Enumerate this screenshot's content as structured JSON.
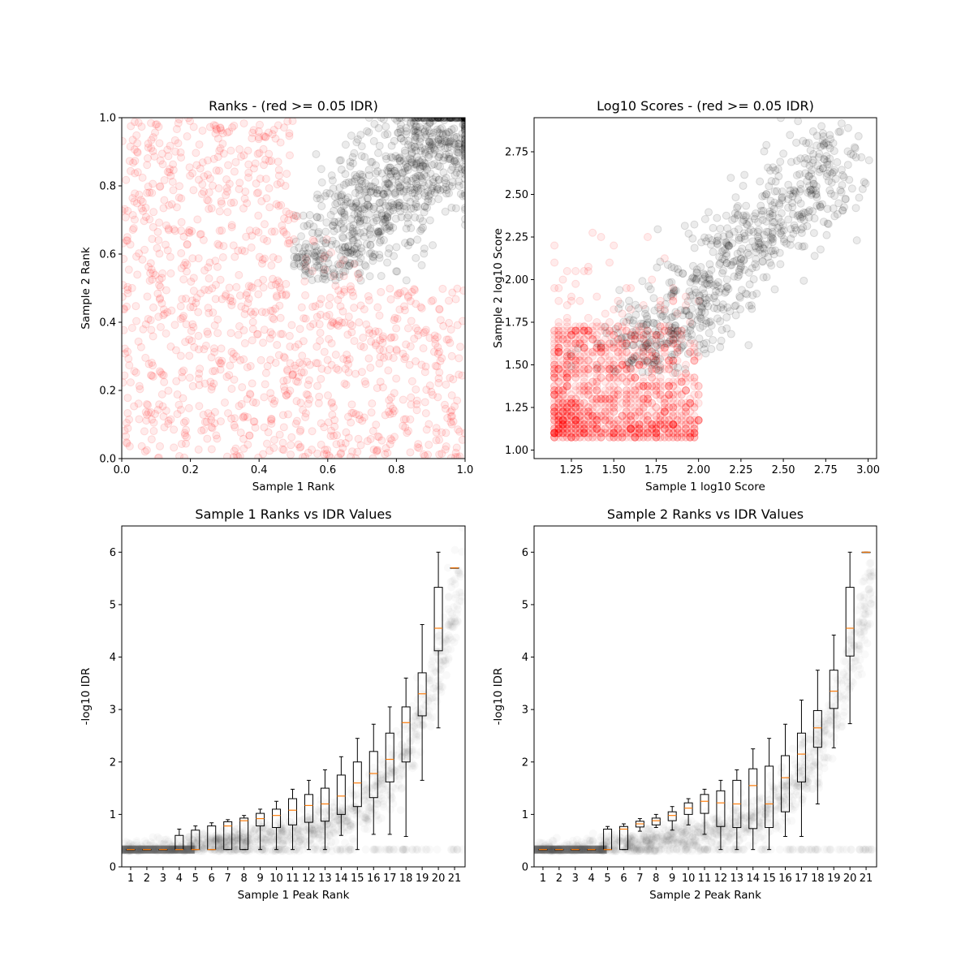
{
  "chart_data": [
    {
      "type": "scatter",
      "title": "Ranks - (red >= 0.05 IDR)",
      "xlabel": "Sample 1 Rank",
      "ylabel": "Sample 2 Rank",
      "xlim": [
        0.0,
        1.0
      ],
      "ylim": [
        0.0,
        1.0
      ],
      "xticks": [
        "0.0",
        "0.2",
        "0.4",
        "0.6",
        "0.8",
        "1.0"
      ],
      "yticks": [
        "0.0",
        "0.2",
        "0.4",
        "0.6",
        "0.8",
        "1.0"
      ],
      "colors": {
        "low_idr": "#ff0000",
        "high_idr": "#000000"
      },
      "series": [
        {
          "color": "#000000",
          "description_points": "about 1000 points clustered from (0.5,0.5) to (1.0,1.0)"
        },
        {
          "color": "#ff0000",
          "description_points": "about 2000 points spread over remaining area"
        }
      ]
    },
    {
      "type": "scatter",
      "title": "Log10 Scores - (red >= 0.05 IDR)",
      "xlabel": "Sample 1 log10 Score",
      "ylabel": "Sample 2 log10 Score",
      "xlim": [
        1.03,
        3.05
      ],
      "ylim": [
        0.95,
        2.95
      ],
      "xticks": [
        "1.25",
        "1.50",
        "1.75",
        "2.00",
        "2.25",
        "2.50",
        "2.75",
        "3.00"
      ],
      "yticks": [
        "1.00",
        "1.25",
        "1.50",
        "1.75",
        "2.00",
        "2.25",
        "2.50",
        "2.75"
      ],
      "colors": {
        "low_idr": "#ff0000",
        "high_idr": "#000000"
      }
    },
    {
      "type": "box",
      "title": "Sample 1 Ranks vs IDR Values",
      "xlabel": "Sample 1 Peak Rank",
      "ylabel": "-log10 IDR",
      "ylim": [
        0,
        6.5
      ],
      "yticks": [
        "0",
        "1",
        "2",
        "3",
        "4",
        "5",
        "6"
      ],
      "categories": [
        "1",
        "2",
        "3",
        "4",
        "5",
        "6",
        "7",
        "8",
        "9",
        "10",
        "11",
        "12",
        "13",
        "14",
        "15",
        "16",
        "17",
        "18",
        "19",
        "20",
        "21"
      ],
      "boxes": [
        {
          "min": 0.33,
          "q1": 0.33,
          "median": 0.33,
          "q3": 0.33,
          "max": 0.33
        },
        {
          "min": 0.33,
          "q1": 0.33,
          "median": 0.33,
          "q3": 0.33,
          "max": 0.33
        },
        {
          "min": 0.33,
          "q1": 0.33,
          "median": 0.33,
          "q3": 0.33,
          "max": 0.33
        },
        {
          "min": 0.33,
          "q1": 0.33,
          "median": 0.33,
          "q3": 0.6,
          "max": 0.72
        },
        {
          "min": 0.33,
          "q1": 0.33,
          "median": 0.33,
          "q3": 0.7,
          "max": 0.78
        },
        {
          "min": 0.33,
          "q1": 0.33,
          "median": 0.33,
          "q3": 0.78,
          "max": 0.84
        },
        {
          "min": 0.33,
          "q1": 0.33,
          "median": 0.78,
          "q3": 0.86,
          "max": 0.9
        },
        {
          "min": 0.33,
          "q1": 0.33,
          "median": 0.88,
          "q3": 0.93,
          "max": 0.98
        },
        {
          "min": 0.33,
          "q1": 0.78,
          "median": 0.92,
          "q3": 1.02,
          "max": 1.1
        },
        {
          "min": 0.33,
          "q1": 0.75,
          "median": 0.98,
          "q3": 1.1,
          "max": 1.25
        },
        {
          "min": 0.33,
          "q1": 0.8,
          "median": 1.08,
          "q3": 1.3,
          "max": 1.48
        },
        {
          "min": 0.33,
          "q1": 0.85,
          "median": 1.17,
          "q3": 1.38,
          "max": 1.65
        },
        {
          "min": 0.33,
          "q1": 0.87,
          "median": 1.2,
          "q3": 1.5,
          "max": 1.85
        },
        {
          "min": 0.6,
          "q1": 1.0,
          "median": 1.35,
          "q3": 1.75,
          "max": 2.1
        },
        {
          "min": 0.33,
          "q1": 1.15,
          "median": 1.6,
          "q3": 2.0,
          "max": 2.45
        },
        {
          "min": 0.62,
          "q1": 1.32,
          "median": 1.78,
          "q3": 2.2,
          "max": 2.72
        },
        {
          "min": 0.62,
          "q1": 1.62,
          "median": 2.05,
          "q3": 2.55,
          "max": 3.05
        },
        {
          "min": 0.58,
          "q1": 2.0,
          "median": 2.75,
          "q3": 3.05,
          "max": 3.6
        },
        {
          "min": 1.65,
          "q1": 2.88,
          "median": 3.3,
          "q3": 3.7,
          "max": 4.62
        },
        {
          "min": 2.65,
          "q1": 4.12,
          "median": 4.55,
          "q3": 5.33,
          "max": 6.0
        },
        {
          "min": 5.7,
          "q1": 5.7,
          "median": 5.7,
          "q3": 5.7,
          "max": 5.7
        }
      ]
    },
    {
      "type": "box",
      "title": "Sample 2 Ranks vs IDR Values",
      "xlabel": "Sample 2 Peak Rank",
      "ylabel": "-log10 IDR",
      "ylim": [
        0,
        6.5
      ],
      "yticks": [
        "0",
        "1",
        "2",
        "3",
        "4",
        "5",
        "6"
      ],
      "categories": [
        "1",
        "2",
        "3",
        "4",
        "5",
        "6",
        "7",
        "8",
        "9",
        "10",
        "11",
        "12",
        "13",
        "14",
        "15",
        "16",
        "17",
        "18",
        "19",
        "20",
        "21"
      ],
      "boxes": [
        {
          "min": 0.33,
          "q1": 0.33,
          "median": 0.33,
          "q3": 0.33,
          "max": 0.33
        },
        {
          "min": 0.33,
          "q1": 0.33,
          "median": 0.33,
          "q3": 0.33,
          "max": 0.33
        },
        {
          "min": 0.33,
          "q1": 0.33,
          "median": 0.33,
          "q3": 0.33,
          "max": 0.33
        },
        {
          "min": 0.33,
          "q1": 0.33,
          "median": 0.33,
          "q3": 0.33,
          "max": 0.33
        },
        {
          "min": 0.33,
          "q1": 0.33,
          "median": 0.33,
          "q3": 0.72,
          "max": 0.77
        },
        {
          "min": 0.33,
          "q1": 0.33,
          "median": 0.72,
          "q3": 0.77,
          "max": 0.82
        },
        {
          "min": 0.68,
          "q1": 0.76,
          "median": 0.82,
          "q3": 0.87,
          "max": 0.92
        },
        {
          "min": 0.75,
          "q1": 0.8,
          "median": 0.88,
          "q3": 0.93,
          "max": 1.0
        },
        {
          "min": 0.7,
          "q1": 0.88,
          "median": 0.98,
          "q3": 1.05,
          "max": 1.15
        },
        {
          "min": 0.8,
          "q1": 1.0,
          "median": 1.12,
          "q3": 1.22,
          "max": 1.3
        },
        {
          "min": 0.62,
          "q1": 1.02,
          "median": 1.25,
          "q3": 1.38,
          "max": 1.48
        },
        {
          "min": 0.33,
          "q1": 0.77,
          "median": 1.22,
          "q3": 1.45,
          "max": 1.65
        },
        {
          "min": 0.33,
          "q1": 0.75,
          "median": 1.2,
          "q3": 1.65,
          "max": 1.85
        },
        {
          "min": 0.33,
          "q1": 0.73,
          "median": 1.55,
          "q3": 1.87,
          "max": 2.25
        },
        {
          "min": 0.33,
          "q1": 0.75,
          "median": 1.2,
          "q3": 1.92,
          "max": 2.45
        },
        {
          "min": 0.58,
          "q1": 1.05,
          "median": 1.7,
          "q3": 2.12,
          "max": 2.72
        },
        {
          "min": 0.58,
          "q1": 1.62,
          "median": 2.15,
          "q3": 2.55,
          "max": 3.18
        },
        {
          "min": 1.2,
          "q1": 2.28,
          "median": 2.65,
          "q3": 2.98,
          "max": 3.75
        },
        {
          "min": 2.27,
          "q1": 3.02,
          "median": 3.35,
          "q3": 3.75,
          "max": 4.42
        },
        {
          "min": 2.73,
          "q1": 4.02,
          "median": 4.55,
          "q3": 5.33,
          "max": 6.0
        },
        {
          "min": 6.0,
          "q1": 6.0,
          "median": 6.0,
          "q3": 6.0,
          "max": 6.0
        }
      ]
    }
  ]
}
